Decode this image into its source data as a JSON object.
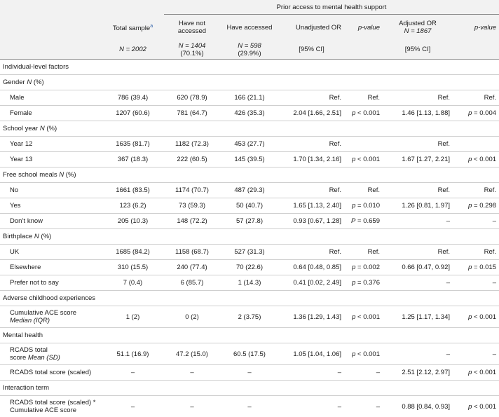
{
  "header": {
    "group_title": "Prior access to mental health support",
    "col_total": "Total sample",
    "col_total_sup": "a",
    "col_not_accessed": "Have not accessed",
    "col_accessed": "Have accessed",
    "col_unadj_or": "Unadjusted OR",
    "col_pvalue_1": "p-value",
    "col_adj_or_l1": "Adjusted OR",
    "col_adj_or_l2": "N = 1867",
    "col_pvalue_2": "p-value",
    "n_total": "N = 2002",
    "n_not_l1": "N = 1404",
    "n_not_l2": "(70.1%)",
    "n_acc_l1": "N = 598",
    "n_acc_l2": "(29.9%)",
    "ci_1": "[95% CI]",
    "ci_2": "[95% CI]"
  },
  "rows": [
    {
      "type": "section",
      "label": "Individual-level factors"
    },
    {
      "type": "section",
      "label": "Gender N (%)"
    },
    {
      "type": "data",
      "label": "Male",
      "vals": [
        "786 (39.4)",
        "620 (78.9)",
        "166 (21.1)",
        "Ref.",
        "Ref.",
        "Ref.",
        "Ref."
      ]
    },
    {
      "type": "data",
      "label": "Female",
      "vals": [
        "1207 (60.6)",
        "781 (64.7)",
        "426 (35.3)",
        "2.04 [1.66, 2.51]",
        "p < 0.001",
        "1.46 [1.13, 1.88]",
        "p = 0.004"
      ]
    },
    {
      "type": "section",
      "label": "School year N (%)"
    },
    {
      "type": "data",
      "label": "Year 12",
      "vals": [
        "1635 (81.7)",
        "1182 (72.3)",
        "453 (27.7)",
        "Ref.",
        "",
        "Ref.",
        ""
      ]
    },
    {
      "type": "data",
      "label": "Year 13",
      "vals": [
        "367 (18.3)",
        "222 (60.5)",
        "145 (39.5)",
        "1.70 [1.34, 2.16]",
        "p < 0.001",
        "1.67 [1.27, 2.21]",
        "p < 0.001"
      ]
    },
    {
      "type": "section",
      "label": "Free school meals N (%)"
    },
    {
      "type": "data",
      "label": "No",
      "vals": [
        "1661 (83.5)",
        "1174 (70.7)",
        "487 (29.3)",
        "Ref.",
        "Ref.",
        "Ref.",
        "Ref."
      ]
    },
    {
      "type": "data",
      "label": "Yes",
      "vals": [
        "123 (6.2)",
        "73 (59.3)",
        "50 (40.7)",
        "1.65 [1.13, 2.40]",
        "p = 0.010",
        "1.26 [0.81, 1.97]",
        "p = 0.298"
      ]
    },
    {
      "type": "data",
      "label": "Don’t know",
      "vals": [
        "205 (10.3)",
        "148 (72.2)",
        "57 (27.8)",
        "0.93 [0.67, 1.28]",
        "P = 0.659",
        "–",
        "–"
      ]
    },
    {
      "type": "section",
      "label": "Birthplace N (%)"
    },
    {
      "type": "data",
      "label": "UK",
      "vals": [
        "1685 (84.2)",
        "1158 (68.7)",
        "527 (31.3)",
        "Ref.",
        "Ref.",
        "Ref.",
        "Ref."
      ]
    },
    {
      "type": "data",
      "label": "Elsewhere",
      "vals": [
        "310 (15.5)",
        "240 (77.4)",
        "70 (22.6)",
        "0.64 [0.48, 0.85]",
        "p = 0.002",
        "0.66 [0.47, 0.92]",
        "p = 0.015"
      ]
    },
    {
      "type": "data",
      "label": "Prefer not to say",
      "vals": [
        "7 (0.4)",
        "6 (85.7)",
        "1 (14.3)",
        "0.41 [0.02, 2.49]",
        "p = 0.376",
        "–",
        "–"
      ]
    },
    {
      "type": "section",
      "label": "Adverse childhood experiences"
    },
    {
      "type": "data2",
      "label": "Cumulative ACE score",
      "label2": "Median (IQR)",
      "vals": [
        "1 (2)",
        "0 (2)",
        "2 (3.75)",
        "1.36 [1.29, 1.43]",
        "p < 0.001",
        "1.25 [1.17, 1.34]",
        "p < 0.001"
      ]
    },
    {
      "type": "section",
      "label": "Mental health"
    },
    {
      "type": "data2",
      "label": "RCADS total",
      "label2": "score Mean (SD)",
      "vals": [
        "51.1 (16.9)",
        "47.2 (15.0)",
        "60.5 (17.5)",
        "1.05 [1.04, 1.06]",
        "p < 0.001",
        "–",
        "–"
      ]
    },
    {
      "type": "data",
      "label": "RCADS total score (scaled)",
      "vals": [
        "–",
        "–",
        "–",
        "–",
        "–",
        "2.51 [2.12, 2.97]",
        "p < 0.001"
      ]
    },
    {
      "type": "section",
      "label": "Interaction term"
    },
    {
      "type": "data2",
      "label": "RCADS total score (scaled) *",
      "label2": "Cumulative ACE score",
      "vals": [
        "–",
        "–",
        "–",
        "–",
        "–",
        "0.88 [0.84, 0.93]",
        "p < 0.001"
      ]
    }
  ]
}
